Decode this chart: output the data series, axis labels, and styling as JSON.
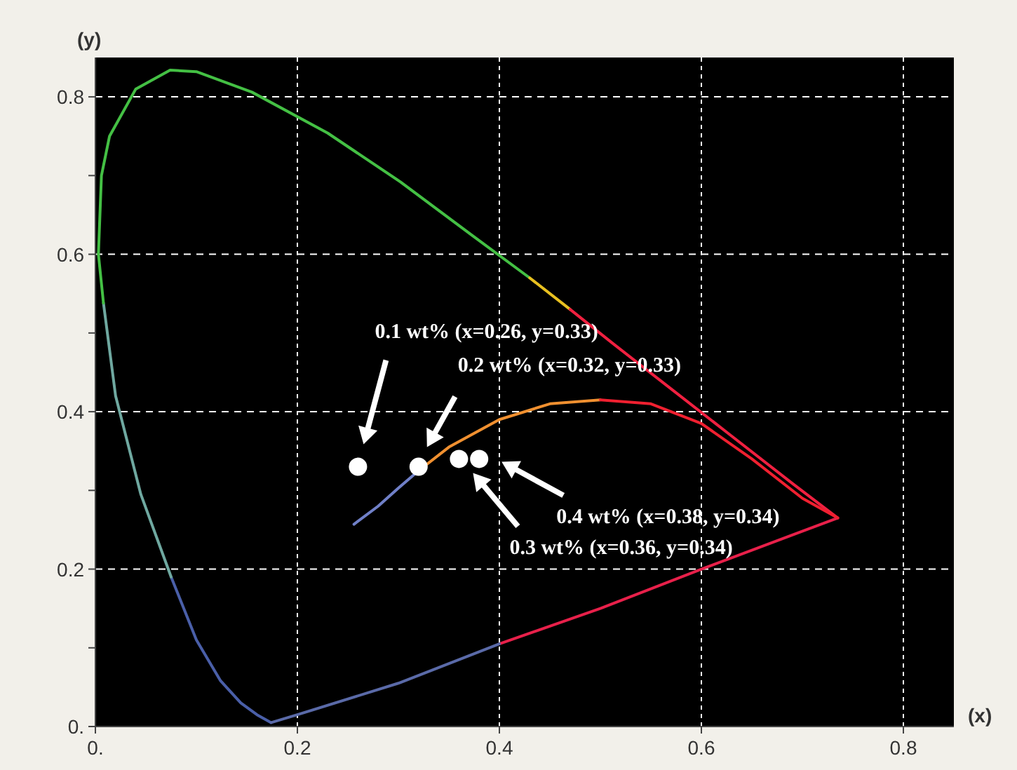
{
  "chart_data": {
    "type": "line",
    "xlabel": "(x)",
    "ylabel": "(y)",
    "xlim": [
      0,
      0.85
    ],
    "ylim": [
      0,
      0.85
    ],
    "xticks": [
      {
        "value": 0,
        "label": "0."
      },
      0.2,
      0.4,
      0.6,
      0.8
    ],
    "yticks": [
      {
        "value": 0,
        "label": "0."
      },
      {
        "value": 0.1,
        "label": null
      },
      0.2,
      {
        "value": 0.3,
        "label": null
      },
      0.4,
      {
        "value": 0.5,
        "label": null
      },
      0.6,
      {
        "value": 0.7,
        "label": null
      },
      0.8
    ],
    "grid": true,
    "marker": "none",
    "line_style": "solid",
    "series": [
      {
        "color": "#4a5fa8",
        "x": [
          0.174,
          0.16,
          0.144,
          0.124,
          0.1,
          0.075
        ],
        "values": [
          0.005,
          0.015,
          0.03,
          0.058,
          0.11,
          0.19
        ]
      },
      {
        "color": "#6fa8a0",
        "x": [
          0.075,
          0.045,
          0.02,
          0.008
        ],
        "values": [
          0.19,
          0.295,
          0.42,
          0.538
        ]
      },
      {
        "color": "#44c044",
        "x": [
          0.008,
          0.003,
          0.006,
          0.014,
          0.04,
          0.074,
          0.1,
          0.155,
          0.23,
          0.302,
          0.373,
          0.43
        ],
        "values": [
          0.538,
          0.6,
          0.7,
          0.75,
          0.81,
          0.834,
          0.832,
          0.806,
          0.754,
          0.692,
          0.624,
          0.57
        ]
      },
      {
        "color": "#e8c020",
        "x": [
          0.43,
          0.47
        ],
        "values": [
          0.57,
          0.53
        ]
      },
      {
        "color": "#f02040",
        "x": [
          0.47,
          0.512,
          0.575,
          0.627,
          0.691,
          0.735
        ],
        "values": [
          0.53,
          0.487,
          0.424,
          0.372,
          0.308,
          0.265
        ]
      },
      {
        "color": "#e8204a",
        "x": [
          0.735,
          0.6,
          0.5,
          0.4
        ],
        "values": [
          0.265,
          0.2,
          0.15,
          0.105
        ]
      },
      {
        "color": "#5a6aa8",
        "x": [
          0.4,
          0.3,
          0.2,
          0.174
        ],
        "values": [
          0.105,
          0.055,
          0.015,
          0.005
        ]
      },
      {
        "color": "#7080c8",
        "x": [
          0.256,
          0.28,
          0.3,
          0.32
        ],
        "values": [
          0.257,
          0.28,
          0.303,
          0.325
        ]
      },
      {
        "color": "#f09030",
        "x": [
          0.32,
          0.35,
          0.4,
          0.45,
          0.5
        ],
        "values": [
          0.325,
          0.355,
          0.39,
          0.41,
          0.415
        ]
      },
      {
        "color": "#f02030",
        "x": [
          0.5,
          0.55,
          0.6,
          0.65,
          0.7,
          0.735
        ],
        "values": [
          0.415,
          0.41,
          0.385,
          0.34,
          0.29,
          0.265
        ]
      },
      {
        "type": "scatter",
        "marker": "circle",
        "color": "#ffffff",
        "x": [
          0.26,
          0.32,
          0.36,
          0.38
        ],
        "values": [
          0.33,
          0.33,
          0.34,
          0.34
        ]
      }
    ],
    "annotations": [
      "0.1 wt% (x=0.26, y=0.33)",
      "0.2 wt% (x=0.32, y=0.33)",
      "0.4 wt% (x=0.38, y=0.34)",
      "0.3 wt% (x=0.36, y=0.34)"
    ]
  }
}
